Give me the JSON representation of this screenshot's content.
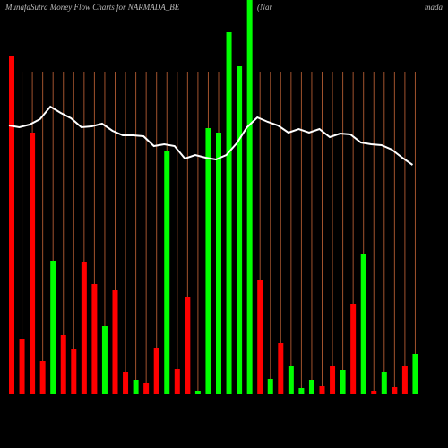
{
  "chart_data": {
    "type": "bar",
    "title": "MunafaSutra  Money Flow  Charts for NARMADA_BE",
    "subtitle": "(Nar",
    "subtitle_end": "mada",
    "categories": [
      null,
      null,
      null,
      null,
      null,
      null,
      null,
      null,
      null,
      null,
      null,
      null,
      null,
      null,
      null,
      null,
      null,
      null,
      null,
      null,
      null,
      null,
      null,
      null,
      null,
      null,
      null,
      null,
      null,
      null,
      null,
      null,
      null,
      null,
      null,
      null,
      null,
      null,
      null,
      null
    ],
    "values": [
      378,
      62,
      292,
      37,
      149,
      66,
      51,
      148,
      123,
      76,
      116,
      25,
      16,
      13,
      52,
      272,
      28,
      108,
      4,
      297,
      292,
      404,
      366,
      440,
      128,
      17,
      57,
      31,
      7,
      16,
      9,
      32,
      27,
      101,
      156,
      4,
      25,
      8,
      32,
      45
    ],
    "bar_colors": [
      "#ff0000",
      "#ff0000",
      "#ff0000",
      "#ff0000",
      "#00ff00",
      "#ff0000",
      "#ff0000",
      "#ff0000",
      "#ff0000",
      "#00ff00",
      "#ff0000",
      "#ff0000",
      "#00ff00",
      "#ff0000",
      "#ff0000",
      "#00ff00",
      "#ff0000",
      "#ff0000",
      "#00ff00",
      "#00ff00",
      "#00ff00",
      "#00ff00",
      "#00ff00",
      "#00ff00",
      "#ff0000",
      "#00ff00",
      "#ff0000",
      "#00ff00",
      "#00ff00",
      "#00ff00",
      "#ff0000",
      "#ff0000",
      "#00ff00",
      "#ff0000",
      "#00ff00",
      "#ff0000",
      "#00ff00",
      "#ff0000",
      "#ff0000",
      "#00ff00"
    ],
    "line": {
      "color": "#ffffff",
      "values": [
        300,
        298,
        301,
        307,
        321,
        314,
        308,
        298,
        299,
        302,
        294,
        289,
        289,
        288,
        277,
        279,
        277,
        263,
        267,
        264,
        262,
        267,
        280,
        298,
        309,
        304,
        300,
        292,
        296,
        292,
        296,
        287,
        291,
        290,
        281,
        279,
        278,
        273,
        264,
        256
      ]
    },
    "guide_color": "#a0522d"
  }
}
